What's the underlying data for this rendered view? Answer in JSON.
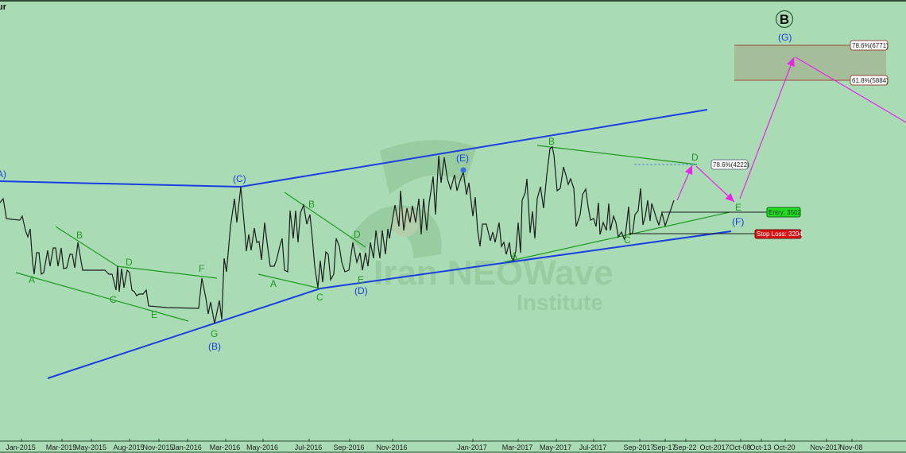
{
  "chart_data": {
    "type": "line",
    "title": "",
    "title_fragment": "ur",
    "xlabel": "",
    "ylabel": "",
    "x_unit": "bar index",
    "ylim": [
      70,
      6706
    ],
    "grid": false,
    "colors": {
      "background": "#a9dcb5",
      "price": "#1c1c1c",
      "channel": "#1a3fe0",
      "wave_lines": "#1e9a1e",
      "projection": "#ee22ee",
      "entry": "#22dd22",
      "stop": "#dd1111"
    },
    "x_ticks": [
      {
        "label": "Jan-2015",
        "bar": 27
      },
      {
        "label": "Mar-2015",
        "bar": 78
      },
      {
        "label": "May-2015",
        "bar": 115
      },
      {
        "label": "Aug-2015",
        "bar": 163
      },
      {
        "label": "Nov-2015",
        "bar": 200
      },
      {
        "label": "Jan-2016",
        "bar": 236
      },
      {
        "label": "Mar-2016",
        "bar": 284
      },
      {
        "label": "May-2016",
        "bar": 331
      },
      {
        "label": "Jul-2016",
        "bar": 389
      },
      {
        "label": "Sep-2016",
        "bar": 440
      },
      {
        "label": "Nov-2016",
        "bar": 494
      },
      {
        "label": "Jan-2017",
        "bar": 595
      },
      {
        "label": "Mar-2017",
        "bar": 652
      },
      {
        "label": "May-2017",
        "bar": 700
      },
      {
        "label": "Jul-2017",
        "bar": 747
      },
      {
        "label": "Sep-2017",
        "bar": 805
      },
      {
        "label": "Sep-17",
        "bar": 837
      },
      {
        "label": "Sep-22",
        "bar": 863
      },
      {
        "label": "Oct-2017",
        "bar": 900
      },
      {
        "label": "Oct-08",
        "bar": 932
      },
      {
        "label": "Oct-13",
        "bar": 958
      },
      {
        "label": "Oct-20",
        "bar": 988
      },
      {
        "label": "Nov-2017",
        "bar": 1040
      },
      {
        "label": "Nov-08",
        "bar": 1072
      }
    ],
    "series": [
      {
        "points": [
          [
            0,
            3646
          ],
          [
            4,
            3706
          ],
          [
            7,
            3490
          ],
          [
            8,
            3406
          ],
          [
            15,
            3394
          ],
          [
            25,
            3382
          ],
          [
            28,
            3442
          ],
          [
            32,
            3226
          ],
          [
            35,
            3130
          ],
          [
            38,
            3250
          ],
          [
            41,
            2746
          ],
          [
            43,
            2566
          ],
          [
            46,
            2890
          ],
          [
            49,
            2890
          ],
          [
            52,
            2566
          ],
          [
            55,
            2590
          ],
          [
            60,
            2926
          ],
          [
            63,
            2686
          ],
          [
            67,
            2962
          ],
          [
            70,
            2962
          ],
          [
            73,
            2686
          ],
          [
            77,
            2962
          ],
          [
            80,
            2650
          ],
          [
            84,
            2662
          ],
          [
            88,
            2866
          ],
          [
            91,
            2866
          ],
          [
            94,
            2662
          ],
          [
            98,
            3046
          ],
          [
            104,
            2626
          ],
          [
            132,
            2626
          ],
          [
            137,
            2566
          ],
          [
            141,
            2566
          ],
          [
            146,
            2326
          ],
          [
            148,
            2686
          ],
          [
            150,
            2302
          ],
          [
            153,
            2650
          ],
          [
            156,
            2362
          ],
          [
            160,
            2626
          ],
          [
            163,
            2590
          ],
          [
            166,
            2326
          ],
          [
            169,
            2302
          ],
          [
            172,
            2242
          ],
          [
            175,
            2266
          ],
          [
            180,
            2266
          ],
          [
            184,
            2326
          ],
          [
            187,
            2086
          ],
          [
            210,
            2062
          ],
          [
            250,
            2050
          ],
          [
            254,
            2506
          ],
          [
            259,
            2206
          ],
          [
            262,
            1966
          ],
          [
            265,
            2146
          ],
          [
            270,
            1822
          ],
          [
            276,
            2170
          ],
          [
            279,
            1882
          ],
          [
            282,
            2806
          ],
          [
            285,
            2602
          ],
          [
            290,
            3286
          ],
          [
            295,
            3706
          ],
          [
            298,
            3346
          ],
          [
            303,
            3886
          ],
          [
            308,
            3226
          ],
          [
            310,
            2914
          ],
          [
            313,
            3166
          ],
          [
            316,
            2926
          ],
          [
            320,
            3262
          ],
          [
            323,
            3046
          ],
          [
            326,
            3058
          ],
          [
            329,
            2782
          ],
          [
            333,
            3346
          ],
          [
            336,
            3046
          ],
          [
            340,
            2686
          ],
          [
            345,
            2686
          ],
          [
            348,
            2782
          ],
          [
            352,
            2986
          ],
          [
            355,
            3106
          ],
          [
            358,
            2626
          ],
          [
            362,
            2602
          ],
          [
            365,
            3526
          ],
          [
            369,
            3106
          ],
          [
            372,
            3526
          ],
          [
            375,
            3046
          ],
          [
            378,
            3490
          ],
          [
            382,
            3610
          ],
          [
            386,
            3322
          ],
          [
            390,
            3466
          ],
          [
            393,
            3106
          ],
          [
            396,
            2686
          ],
          [
            400,
            2362
          ],
          [
            403,
            2770
          ],
          [
            406,
            2446
          ],
          [
            410,
            2902
          ],
          [
            413,
            2866
          ],
          [
            416,
            2482
          ],
          [
            420,
            2566
          ],
          [
            423,
            3106
          ],
          [
            427,
            2986
          ],
          [
            430,
            2746
          ],
          [
            434,
            2602
          ],
          [
            439,
            2626
          ],
          [
            444,
            3046
          ],
          [
            449,
            2746
          ],
          [
            453,
            2890
          ],
          [
            456,
            2626
          ],
          [
            460,
            2890
          ],
          [
            463,
            2686
          ],
          [
            466,
            3046
          ],
          [
            470,
            2806
          ],
          [
            473,
            3226
          ],
          [
            478,
            2806
          ],
          [
            481,
            3226
          ],
          [
            485,
            2866
          ],
          [
            488,
            3250
          ],
          [
            490,
            3106
          ],
          [
            497,
            3610
          ],
          [
            502,
            3286
          ],
          [
            504,
            3826
          ],
          [
            508,
            3226
          ],
          [
            512,
            3562
          ],
          [
            516,
            3346
          ],
          [
            519,
            3598
          ],
          [
            523,
            3346
          ],
          [
            527,
            3706
          ],
          [
            530,
            3166
          ],
          [
            533,
            3706
          ],
          [
            537,
            3226
          ],
          [
            540,
            3646
          ],
          [
            545,
            4042
          ],
          [
            548,
            3466
          ],
          [
            552,
            4354
          ],
          [
            555,
            3946
          ],
          [
            559,
            4330
          ],
          [
            563,
            4006
          ],
          [
            567,
            3850
          ],
          [
            572,
            4066
          ],
          [
            575,
            3826
          ],
          [
            579,
            3982
          ],
          [
            583,
            4114
          ],
          [
            587,
            3766
          ],
          [
            590,
            3946
          ],
          [
            595,
            3442
          ],
          [
            598,
            3730
          ],
          [
            601,
            3226
          ],
          [
            604,
            2986
          ],
          [
            607,
            3322
          ],
          [
            612,
            3322
          ],
          [
            617,
            3070
          ],
          [
            620,
            3202
          ],
          [
            623,
            3046
          ],
          [
            628,
            3346
          ],
          [
            631,
            2986
          ],
          [
            634,
            3046
          ],
          [
            637,
            2866
          ],
          [
            641,
            3046
          ],
          [
            643,
            2842
          ],
          [
            646,
            2770
          ],
          [
            649,
            2914
          ],
          [
            652,
            3346
          ],
          [
            655,
            2890
          ],
          [
            657,
            3682
          ],
          [
            661,
            3802
          ],
          [
            663,
            4006
          ],
          [
            667,
            3190
          ],
          [
            670,
            3514
          ],
          [
            673,
            3106
          ],
          [
            676,
            3706
          ],
          [
            680,
            3886
          ],
          [
            684,
            3562
          ],
          [
            688,
            4066
          ],
          [
            692,
            4462
          ],
          [
            695,
            4486
          ],
          [
            697,
            4366
          ],
          [
            701,
            3826
          ],
          [
            705,
            3862
          ],
          [
            709,
            4186
          ],
          [
            712,
            4066
          ],
          [
            715,
            3922
          ],
          [
            718,
            4006
          ],
          [
            722,
            3862
          ],
          [
            725,
            3286
          ],
          [
            730,
            3466
          ],
          [
            733,
            3766
          ],
          [
            737,
            3850
          ],
          [
            740,
            3586
          ],
          [
            743,
            3382
          ],
          [
            747,
            3406
          ],
          [
            750,
            3286
          ],
          [
            753,
            3646
          ],
          [
            755,
            3166
          ],
          [
            759,
            3346
          ],
          [
            763,
            3226
          ],
          [
            766,
            3634
          ],
          [
            768,
            3226
          ],
          [
            772,
            3442
          ],
          [
            775,
            3346
          ],
          [
            778,
            3130
          ],
          [
            782,
            3202
          ],
          [
            786,
            3082
          ],
          [
            789,
            3370
          ],
          [
            791,
            3586
          ],
          [
            793,
            3166
          ],
          [
            796,
            3190
          ],
          [
            799,
            3466
          ],
          [
            803,
            3526
          ],
          [
            806,
            3862
          ],
          [
            809,
            3310
          ],
          [
            812,
            3442
          ],
          [
            815,
            3682
          ],
          [
            818,
            3370
          ],
          [
            820,
            3634
          ],
          [
            823,
            3526
          ],
          [
            826,
            3406
          ],
          [
            829,
            3310
          ],
          [
            833,
            3490
          ],
          [
            837,
            3298
          ],
          [
            848,
            3682
          ]
        ]
      }
    ],
    "annotations": {
      "wave_labels_green": [
        "A",
        "B",
        "C",
        "D",
        "E",
        "F",
        "G",
        "A",
        "B",
        "C",
        "D",
        "E",
        "A",
        "B",
        "C",
        "D",
        "E"
      ],
      "wave_labels_blue": [
        "(A)",
        "(B)",
        "(C)",
        "(D)",
        "(E)",
        "(F)",
        "(G)"
      ],
      "degree_label": "B",
      "fib_upper": "78.6%(6771)",
      "fib_lower": "61.8%(5884)",
      "fib_d": "78.6%(4222)",
      "entry": "Entry: 3502",
      "stop_loss": "Stop Loss: 3204"
    },
    "watermark": {
      "line1": "Iran NEOWave",
      "line2": "Institute"
    }
  }
}
